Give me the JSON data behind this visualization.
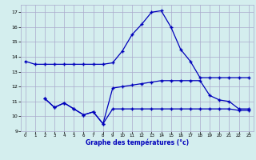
{
  "title": "Graphe des températures (°c)",
  "background_color": "#d4eeee",
  "grid_color": "#aaaacc",
  "line_color": "#0000bb",
  "xlim": [
    -0.5,
    23.5
  ],
  "ylim": [
    9,
    17.5
  ],
  "xticks": [
    0,
    1,
    2,
    3,
    4,
    5,
    6,
    7,
    8,
    9,
    10,
    11,
    12,
    13,
    14,
    15,
    16,
    17,
    18,
    19,
    20,
    21,
    22,
    23
  ],
  "yticks": [
    9,
    10,
    11,
    12,
    13,
    14,
    15,
    16,
    17
  ],
  "series1_x": [
    0,
    1,
    2,
    3,
    4,
    5,
    6,
    7,
    8,
    9,
    10,
    11,
    12,
    13,
    14,
    15,
    16,
    17,
    18,
    19,
    20,
    21,
    22,
    23
  ],
  "series1_y": [
    13.7,
    13.5,
    13.5,
    13.5,
    13.5,
    13.5,
    13.5,
    13.5,
    13.5,
    13.6,
    14.4,
    15.5,
    16.2,
    17.0,
    17.1,
    16.0,
    14.5,
    13.7,
    12.6,
    12.6,
    12.6,
    12.6,
    12.6,
    12.6
  ],
  "series2_x": [
    2,
    3,
    4,
    5,
    6,
    7,
    8,
    9,
    10,
    11,
    12,
    13,
    14,
    15,
    16,
    17,
    18,
    19,
    20,
    21,
    22,
    23
  ],
  "series2_y": [
    11.2,
    10.6,
    10.9,
    10.5,
    10.1,
    10.3,
    9.5,
    11.9,
    12.0,
    12.1,
    12.2,
    12.3,
    12.4,
    12.4,
    12.4,
    12.4,
    12.4,
    11.4,
    11.1,
    11.0,
    10.5,
    10.5
  ],
  "series3_x": [
    2,
    3,
    4,
    5,
    6,
    7,
    8,
    9,
    10,
    11,
    12,
    13,
    14,
    15,
    16,
    17,
    18,
    19,
    20,
    21,
    22,
    23
  ],
  "series3_y": [
    11.2,
    10.6,
    10.9,
    10.5,
    10.1,
    10.3,
    9.5,
    10.5,
    10.5,
    10.5,
    10.5,
    10.5,
    10.5,
    10.5,
    10.5,
    10.5,
    10.5,
    10.5,
    10.5,
    10.5,
    10.4,
    10.4
  ]
}
